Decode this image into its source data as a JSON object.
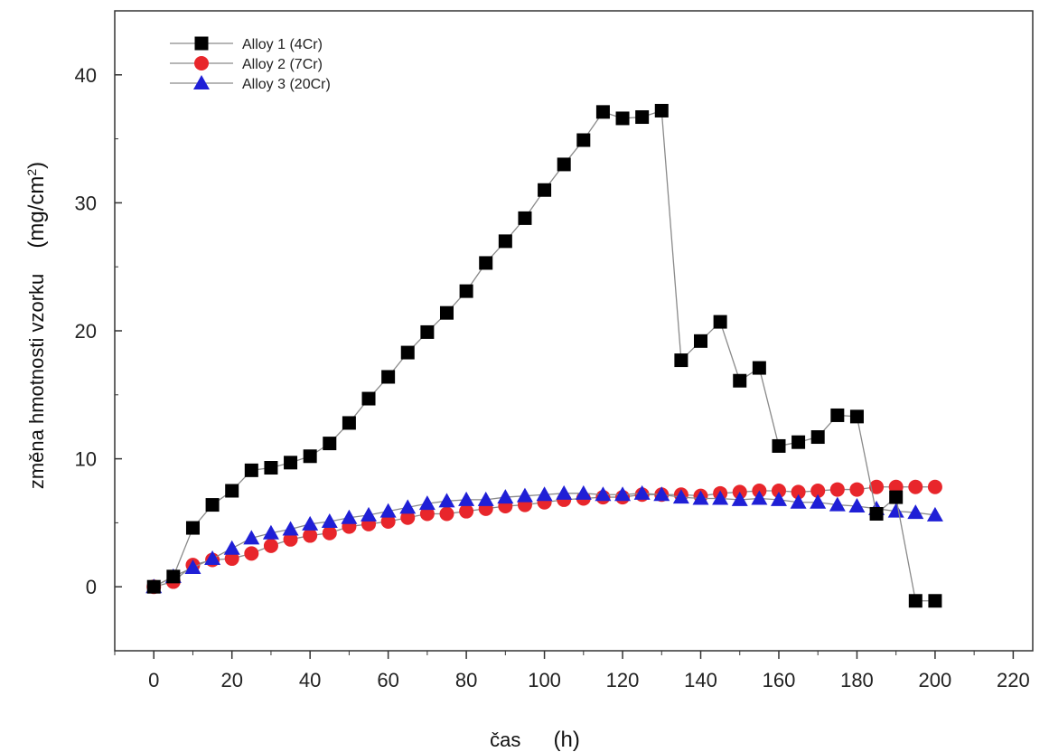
{
  "chart_data": {
    "type": "line",
    "title": "",
    "xlabel": "čas",
    "xunit": "(h)",
    "ylabel": "změna hmotnosti vzorku",
    "yunit_prefix": "(mg/cm",
    "yunit_sup": "2",
    "yunit_suffix": ")",
    "xlim": [
      -10,
      225
    ],
    "ylim": [
      -5,
      45
    ],
    "xticks": [
      0,
      20,
      40,
      60,
      80,
      100,
      120,
      140,
      160,
      180,
      200,
      220
    ],
    "yticks": [
      0,
      10,
      20,
      30,
      40
    ],
    "grid": false,
    "legend_position": "top-left",
    "x": [
      0,
      5,
      10,
      15,
      20,
      25,
      30,
      35,
      40,
      45,
      50,
      55,
      60,
      65,
      70,
      75,
      80,
      85,
      90,
      95,
      100,
      105,
      110,
      115,
      120,
      125,
      130,
      135,
      140,
      145,
      150,
      155,
      160,
      165,
      170,
      175,
      180,
      185,
      190,
      195,
      200
    ],
    "series": [
      {
        "name": "Alloy 1 (4Cr)",
        "marker": "square",
        "color": "#000000",
        "values": [
          0,
          0.8,
          4.6,
          6.4,
          7.5,
          9.1,
          9.3,
          9.7,
          10.2,
          11.2,
          12.8,
          14.7,
          16.4,
          18.3,
          19.9,
          21.4,
          23.1,
          25.3,
          27.0,
          28.8,
          31.0,
          33.0,
          34.9,
          37.1,
          36.6,
          36.7,
          37.2,
          17.7,
          19.2,
          20.7,
          16.1,
          17.1,
          11.0,
          11.3,
          11.7,
          13.4,
          13.3,
          5.7,
          7.0,
          -1.1,
          -1.1
        ]
      },
      {
        "name": "Alloy 2 (7Cr)",
        "marker": "circle",
        "color": "#e8262b",
        "values": [
          0,
          0.4,
          1.7,
          2.1,
          2.2,
          2.6,
          3.2,
          3.7,
          4.0,
          4.2,
          4.7,
          4.9,
          5.1,
          5.4,
          5.7,
          5.7,
          5.9,
          6.1,
          6.3,
          6.4,
          6.6,
          6.8,
          6.9,
          7.0,
          7.0,
          7.2,
          7.2,
          7.2,
          7.1,
          7.3,
          7.4,
          7.5,
          7.5,
          7.4,
          7.5,
          7.6,
          7.6,
          7.8,
          7.8,
          7.8,
          7.8
        ]
      },
      {
        "name": "Alloy 3 (20Cr)",
        "marker": "triangle",
        "color": "#1f1fd6",
        "values": [
          0,
          0.8,
          1.5,
          2.2,
          3.0,
          3.8,
          4.2,
          4.5,
          4.9,
          5.1,
          5.4,
          5.6,
          5.9,
          6.2,
          6.5,
          6.7,
          6.8,
          6.8,
          7.0,
          7.1,
          7.2,
          7.3,
          7.3,
          7.2,
          7.2,
          7.3,
          7.2,
          7.0,
          6.9,
          6.9,
          6.8,
          6.9,
          6.8,
          6.6,
          6.6,
          6.4,
          6.3,
          6.1,
          5.9,
          5.8,
          5.6
        ]
      }
    ]
  }
}
